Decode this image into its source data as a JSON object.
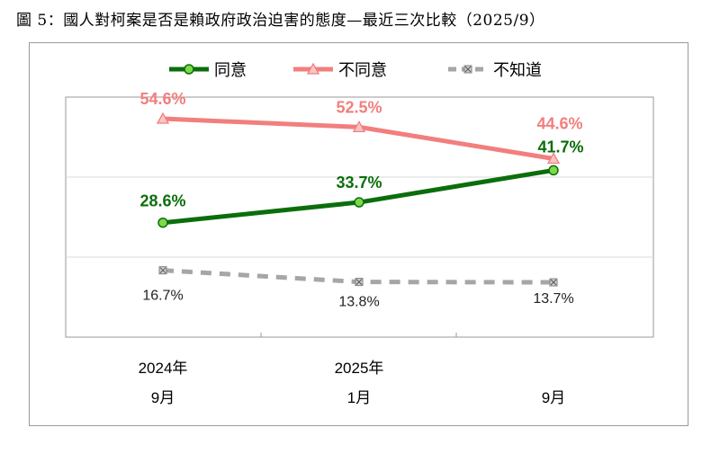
{
  "title": "圖 5：國人對柯案是否是賴政府政治迫害的態度—最近三次比較（2025/9）",
  "chart_data": {
    "type": "line",
    "categories": [
      [
        "2024年",
        "9月"
      ],
      [
        "2025年",
        "1月"
      ],
      [
        "",
        "9月"
      ]
    ],
    "series": [
      {
        "name": "同意",
        "values": [
          28.6,
          33.7,
          41.7
        ],
        "labels": [
          "28.6%",
          "33.7%",
          "41.7%"
        ],
        "color": "#0b6e0b",
        "marker": "circle",
        "dash": false
      },
      {
        "name": "不同意",
        "values": [
          54.6,
          52.5,
          44.6
        ],
        "labels": [
          "54.6%",
          "52.5%",
          "44.6%"
        ],
        "color": "#f27e7e",
        "marker": "triangle",
        "dash": false
      },
      {
        "name": "不知道",
        "values": [
          16.7,
          13.8,
          13.7
        ],
        "labels": [
          "16.7%",
          "13.8%",
          "13.7%"
        ],
        "color": "#a6a6a6",
        "marker": "x",
        "dash": true
      }
    ],
    "ylim": [
      0,
      60
    ],
    "grid": true,
    "legend": "top"
  }
}
